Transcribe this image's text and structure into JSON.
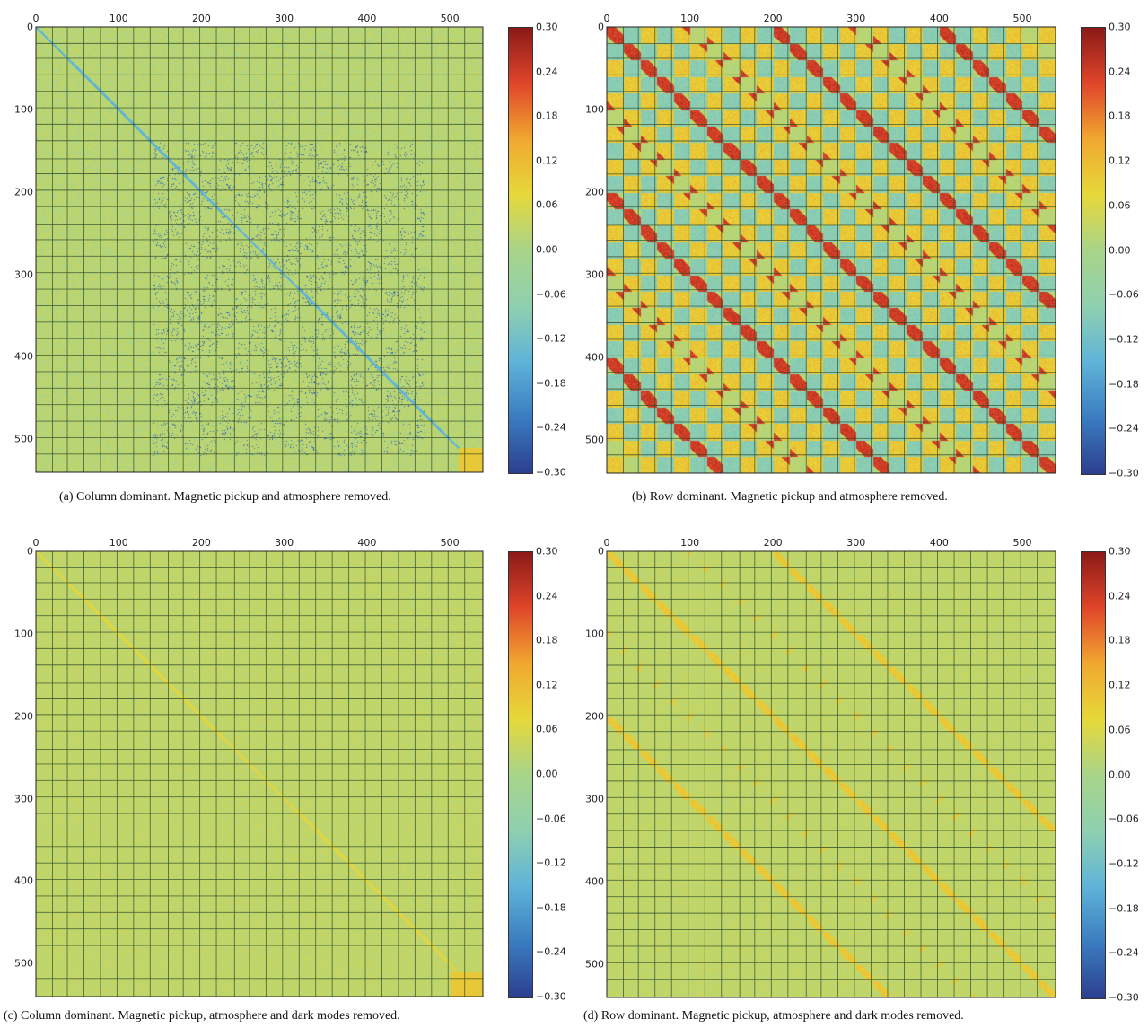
{
  "colors": {
    "colormap": [
      "#2c3f8f",
      "#3a7cc0",
      "#5fb3d8",
      "#8fd0b0",
      "#a8d48a",
      "#e6d83a",
      "#f0a830",
      "#e0452a",
      "#8a1a18"
    ],
    "background": "#a6d08a",
    "grid": "#2f4a2a"
  },
  "chart_data": [
    {
      "id": "a",
      "type": "heatmap",
      "caption": "(a) Column dominant. Magnetic pickup and atmosphere removed.",
      "x_ticks": [
        "0",
        "100",
        "200",
        "300",
        "400",
        "500"
      ],
      "y_ticks": [
        "0",
        "100",
        "200",
        "300",
        "400",
        "500"
      ],
      "xlim": [
        0,
        540
      ],
      "ylim": [
        0,
        540
      ],
      "colorbar": {
        "range": [
          -0.3,
          0.3
        ],
        "ticks": [
          "0.30",
          "0.24",
          "0.18",
          "0.12",
          "0.06",
          "0.00",
          "−0.06",
          "−0.12",
          "−0.18",
          "−0.24",
          "−0.30"
        ]
      },
      "pattern": "column-dominant, dense dark features in central block, faint diagonal"
    },
    {
      "id": "b",
      "type": "heatmap",
      "caption": "(b) Row dominant. Magnetic pickup and atmosphere removed.",
      "x_ticks": [
        "0",
        "100",
        "200",
        "300",
        "400",
        "500"
      ],
      "y_ticks": [
        "0",
        "100",
        "200",
        "300",
        "400",
        "500"
      ],
      "xlim": [
        0,
        540
      ],
      "ylim": [
        0,
        540
      ],
      "colorbar": {
        "range": [
          -0.3,
          0.3
        ],
        "ticks": [
          "0.30",
          "0.24",
          "0.18",
          "0.12",
          "0.06",
          "0.00",
          "−0.06",
          "−0.12",
          "−0.18",
          "−0.24",
          "−0.30"
        ]
      },
      "pattern": "row-dominant, strong checkerboard with multiple red diagonals"
    },
    {
      "id": "c",
      "type": "heatmap",
      "caption": "(c) Column dominant. Magnetic pickup, atmosphere and dark modes removed.",
      "x_ticks": [
        "0",
        "100",
        "200",
        "300",
        "400",
        "500"
      ],
      "y_ticks": [
        "0",
        "100",
        "200",
        "300",
        "400",
        "500"
      ],
      "xlim": [
        0,
        540
      ],
      "ylim": [
        0,
        540
      ],
      "colorbar": {
        "range": [
          -0.3,
          0.3
        ],
        "ticks": [
          "0.30",
          "0.24",
          "0.18",
          "0.12",
          "0.06",
          "0.00",
          "−0.06",
          "−0.12",
          "−0.18",
          "−0.24",
          "−0.30"
        ]
      },
      "pattern": "mostly uniform, single faint main diagonal"
    },
    {
      "id": "d",
      "type": "heatmap",
      "caption": "(d) Row dominant. Magnetic pickup, atmosphere and dark modes removed.",
      "x_ticks": [
        "0",
        "100",
        "200",
        "300",
        "400",
        "500"
      ],
      "y_ticks": [
        "0",
        "100",
        "200",
        "300",
        "400",
        "500"
      ],
      "xlim": [
        0,
        540
      ],
      "ylim": [
        0,
        540
      ],
      "colorbar": {
        "range": [
          -0.3,
          0.3
        ],
        "ticks": [
          "0.30",
          "0.24",
          "0.18",
          "0.12",
          "0.06",
          "0.00",
          "−0.06",
          "−0.12",
          "−0.18",
          "−0.24",
          "−0.30"
        ]
      },
      "pattern": "mostly uniform, weak yellow checkerboard with diagonals"
    }
  ]
}
